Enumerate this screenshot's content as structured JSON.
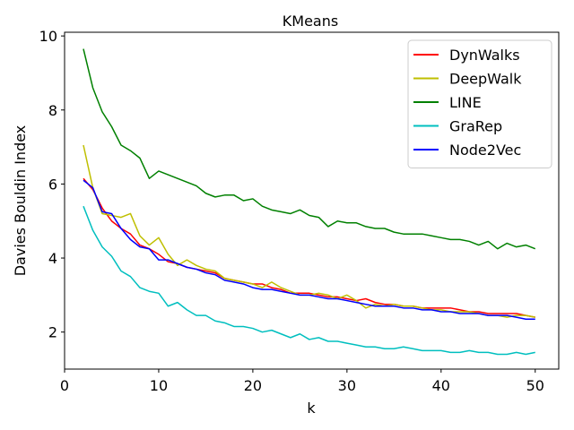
{
  "chart_data": {
    "type": "line",
    "title": "KMeans",
    "xlabel": "k",
    "ylabel": "Davies Bouldin Index",
    "xlim": [
      0,
      52.5
    ],
    "ylim": [
      1.0,
      10.1
    ],
    "xticks": [
      0,
      10,
      20,
      30,
      40,
      50
    ],
    "yticks": [
      2,
      4,
      6,
      8,
      10
    ],
    "grid": false,
    "legend_position": "top-right",
    "x": [
      2,
      3,
      4,
      5,
      6,
      7,
      8,
      9,
      10,
      11,
      12,
      13,
      14,
      15,
      16,
      17,
      18,
      19,
      20,
      21,
      22,
      23,
      24,
      25,
      26,
      27,
      28,
      29,
      30,
      31,
      32,
      33,
      34,
      35,
      36,
      37,
      38,
      39,
      40,
      41,
      42,
      43,
      44,
      45,
      46,
      47,
      48,
      49,
      50
    ],
    "series": [
      {
        "name": "DynWalks",
        "color": "#ff0000",
        "values": [
          6.15,
          5.85,
          5.35,
          5.0,
          4.8,
          4.65,
          4.35,
          4.25,
          4.1,
          3.9,
          3.85,
          3.75,
          3.7,
          3.65,
          3.6,
          3.45,
          3.4,
          3.35,
          3.3,
          3.3,
          3.2,
          3.15,
          3.05,
          3.05,
          3.05,
          3.0,
          2.95,
          2.95,
          2.9,
          2.85,
          2.9,
          2.8,
          2.75,
          2.75,
          2.7,
          2.7,
          2.65,
          2.65,
          2.65,
          2.65,
          2.6,
          2.55,
          2.55,
          2.5,
          2.5,
          2.5,
          2.5,
          2.45,
          2.4
        ]
      },
      {
        "name": "DeepWalk",
        "color": "#bfbf00",
        "values": [
          7.05,
          5.9,
          5.2,
          5.15,
          5.1,
          5.2,
          4.6,
          4.35,
          4.55,
          4.1,
          3.8,
          3.95,
          3.8,
          3.7,
          3.65,
          3.45,
          3.4,
          3.35,
          3.3,
          3.2,
          3.35,
          3.2,
          3.1,
          3.0,
          3.0,
          3.05,
          3.0,
          2.9,
          3.0,
          2.85,
          2.65,
          2.75,
          2.7,
          2.75,
          2.7,
          2.7,
          2.65,
          2.6,
          2.6,
          2.55,
          2.55,
          2.55,
          2.5,
          2.45,
          2.45,
          2.4,
          2.45,
          2.45,
          2.4
        ]
      },
      {
        "name": "LINE",
        "color": "#008000",
        "values": [
          9.65,
          8.6,
          7.95,
          7.55,
          7.05,
          6.9,
          6.7,
          6.15,
          6.35,
          6.25,
          6.15,
          6.05,
          5.95,
          5.75,
          5.65,
          5.7,
          5.7,
          5.55,
          5.6,
          5.4,
          5.3,
          5.25,
          5.2,
          5.3,
          5.15,
          5.1,
          4.85,
          5.0,
          4.95,
          4.95,
          4.85,
          4.8,
          4.8,
          4.7,
          4.65,
          4.65,
          4.65,
          4.6,
          4.55,
          4.5,
          4.5,
          4.45,
          4.35,
          4.45,
          4.25,
          4.4,
          4.3,
          4.35,
          4.25
        ]
      },
      {
        "name": "GraRep",
        "color": "#00bfbf",
        "values": [
          5.4,
          4.75,
          4.3,
          4.05,
          3.65,
          3.5,
          3.2,
          3.1,
          3.05,
          2.7,
          2.8,
          2.6,
          2.45,
          2.45,
          2.3,
          2.25,
          2.15,
          2.15,
          2.1,
          2.0,
          2.05,
          1.95,
          1.85,
          1.95,
          1.8,
          1.85,
          1.75,
          1.75,
          1.7,
          1.65,
          1.6,
          1.6,
          1.55,
          1.55,
          1.6,
          1.55,
          1.5,
          1.5,
          1.5,
          1.45,
          1.45,
          1.5,
          1.45,
          1.45,
          1.4,
          1.4,
          1.45,
          1.4,
          1.45
        ]
      },
      {
        "name": "Node2Vec",
        "color": "#0000ff",
        "values": [
          6.1,
          5.9,
          5.25,
          5.2,
          4.8,
          4.5,
          4.3,
          4.25,
          3.95,
          3.95,
          3.85,
          3.75,
          3.7,
          3.6,
          3.55,
          3.4,
          3.35,
          3.3,
          3.2,
          3.15,
          3.15,
          3.1,
          3.05,
          3.0,
          3.0,
          2.95,
          2.9,
          2.9,
          2.85,
          2.8,
          2.75,
          2.7,
          2.7,
          2.7,
          2.65,
          2.65,
          2.6,
          2.6,
          2.55,
          2.55,
          2.5,
          2.5,
          2.5,
          2.45,
          2.45,
          2.45,
          2.4,
          2.35,
          2.35
        ]
      }
    ]
  }
}
